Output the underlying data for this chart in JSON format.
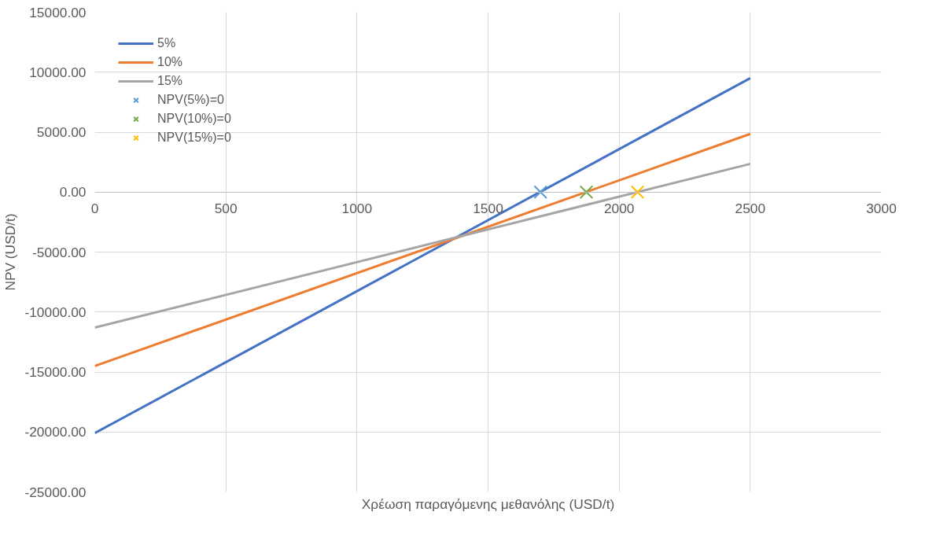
{
  "chart_data": {
    "type": "line",
    "xlabel": "Χρέωση παραγόμενης μεθανόλης (USD/t)",
    "ylabel": "NPV (USD/t)",
    "xlim": [
      0,
      3000
    ],
    "xticks": [
      0,
      500,
      1000,
      1500,
      2000,
      2500,
      3000
    ],
    "ylim": [
      -25000,
      15000
    ],
    "yticks": [
      {
        "value": -25000,
        "label": "-25000.00"
      },
      {
        "value": -20000,
        "label": "-20000.00"
      },
      {
        "value": -15000,
        "label": "-15000.00"
      },
      {
        "value": -10000,
        "label": "-10000.00"
      },
      {
        "value": -5000,
        "label": "-5000.00"
      },
      {
        "value": 0,
        "label": "0.00"
      },
      {
        "value": 5000,
        "label": "5000.00"
      },
      {
        "value": 10000,
        "label": "10000.00"
      },
      {
        "value": 15000,
        "label": "15000.00"
      }
    ],
    "grid": true,
    "legend": "top left",
    "series": [
      {
        "name": "5%",
        "color": "#4472c4",
        "x": [
          0,
          2500
        ],
        "values": [
          -20100,
          9500
        ]
      },
      {
        "name": "10%",
        "color": "#ed7d31",
        "x": [
          0,
          2500
        ],
        "values": [
          -14500,
          4850
        ]
      },
      {
        "name": "15%",
        "color": "#a5a5a5",
        "x": [
          0,
          2500
        ],
        "values": [
          -11300,
          2350
        ]
      },
      {
        "name": "NPV(5%)=0",
        "type": "scatter",
        "marker": "cross",
        "color": "#5b9bd5",
        "x": [
          1700
        ],
        "values": [
          0
        ]
      },
      {
        "name": "NPV(10%)=0",
        "type": "scatter",
        "marker": "cross",
        "color": "#70ad47",
        "x": [
          1875
        ],
        "values": [
          0
        ]
      },
      {
        "name": "NPV(15%)=0",
        "type": "scatter",
        "marker": "cross",
        "color": "#ffc000",
        "x": [
          2070
        ],
        "values": [
          0
        ]
      }
    ]
  }
}
